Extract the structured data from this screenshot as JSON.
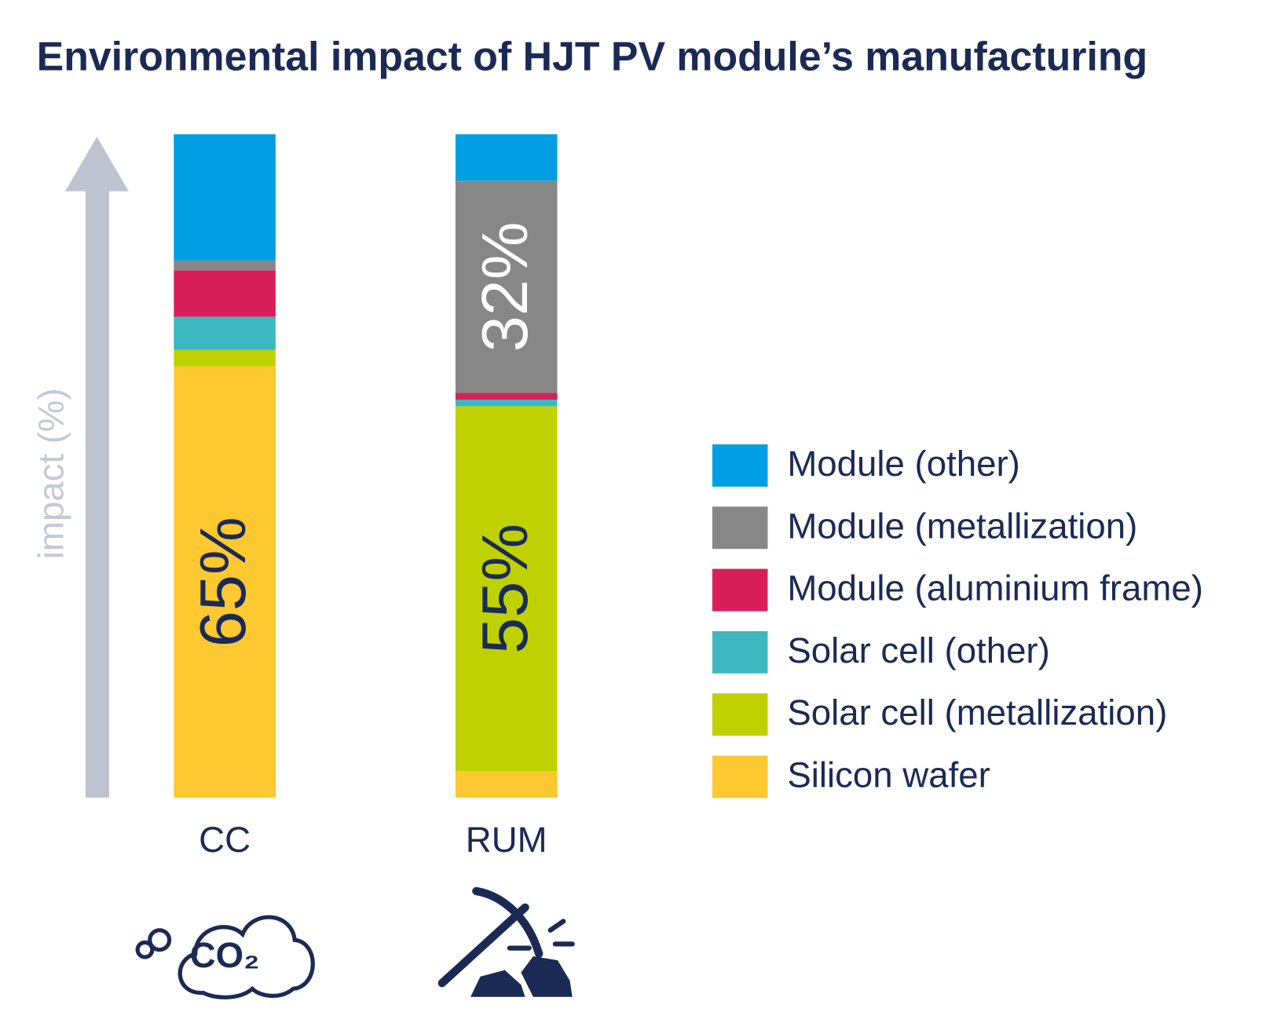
{
  "chart_data": {
    "type": "stacked-bar",
    "title": "Environmental impact of HJT PV module’s manufacturing",
    "y_label": "impact (%)",
    "categories": [
      "CC",
      "RUM"
    ],
    "ylim": [
      0,
      100
    ],
    "series": [
      {
        "name": "Silicon wafer",
        "color": "#fdc830",
        "values": [
          65,
          4
        ],
        "value_labels": [
          "65%",
          null
        ]
      },
      {
        "name": "Solar cell (metallization)",
        "color": "#c0d100",
        "values": [
          2.5,
          55
        ],
        "value_labels": [
          null,
          "55%"
        ]
      },
      {
        "name": "Solar cell (other)",
        "color": "#3db8c1",
        "values": [
          5,
          1
        ]
      },
      {
        "name": "Module (aluminium frame)",
        "color": "#d81f5a",
        "values": [
          7,
          1
        ]
      },
      {
        "name": "Module (metallization)",
        "color": "#878787",
        "values": [
          1.5,
          32
        ],
        "value_labels": [
          null,
          "32%"
        ]
      },
      {
        "name": "Module (other)",
        "color": "#009fe3",
        "values": [
          19,
          7
        ]
      }
    ],
    "annotations": [
      "CO₂"
    ]
  }
}
